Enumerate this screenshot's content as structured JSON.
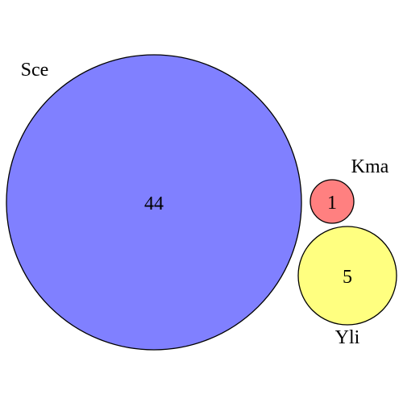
{
  "diagram": {
    "type": "venn",
    "sets": [
      {
        "name": "Sce",
        "count": "44",
        "color": "#8080ff"
      },
      {
        "name": "Kma",
        "count": "1",
        "color": "#ff8080"
      },
      {
        "name": "Yli",
        "count": "5",
        "color": "#ffff80"
      }
    ]
  }
}
